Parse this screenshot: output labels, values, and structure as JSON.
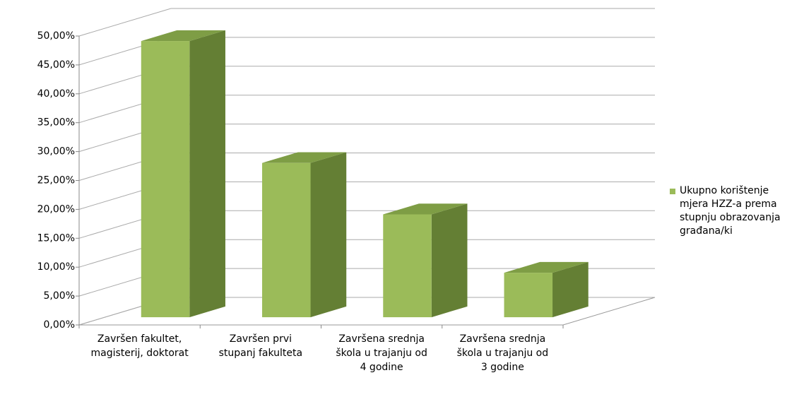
{
  "chart_data": {
    "type": "bar3d",
    "categories": [
      "Završen fakultet, magisterij, doktorat",
      "Završen prvi stupanj fakulteta",
      "Završena srednja škola u trajanju od 4 godine",
      "Završena srednja škola u trajanju od 3 godine"
    ],
    "series": [
      {
        "name": "Ukupno korištenje mjera HZZ-a prema stupnju obrazovanja građana/ki",
        "color": "#9bbb59",
        "values": [
          47.8,
          26.7,
          17.8,
          7.7
        ]
      }
    ],
    "ylim": [
      0,
      50
    ],
    "yticks": [
      {
        "value": 0,
        "label": "0,00%"
      },
      {
        "value": 5,
        "label": "5,00%"
      },
      {
        "value": 10,
        "label": "10,00%"
      },
      {
        "value": 15,
        "label": "15,00%"
      },
      {
        "value": 20,
        "label": "20,00%"
      },
      {
        "value": 25,
        "label": "25,00%"
      },
      {
        "value": 30,
        "label": "30,00%"
      },
      {
        "value": 35,
        "label": "35,00%"
      },
      {
        "value": 40,
        "label": "40,00%"
      },
      {
        "value": 45,
        "label": "45,00%"
      },
      {
        "value": 50,
        "label": "50,00%"
      }
    ],
    "grid": true,
    "legend": "right"
  }
}
